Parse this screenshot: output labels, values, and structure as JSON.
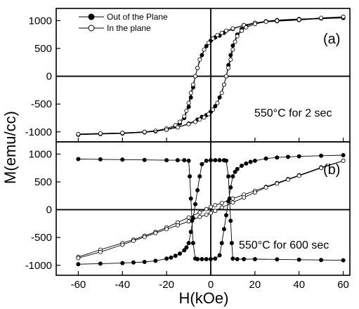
{
  "figure": {
    "ylabel": "M(emu/cc)",
    "xlabel": "H(kOe)"
  },
  "chart_data": [
    {
      "type": "line",
      "panel_label": "(a)",
      "annotation": "550°C for 2 sec",
      "xlim": [
        -70,
        63
      ],
      "ylim": [
        -1180,
        1220
      ],
      "yticks": [
        -1000,
        -500,
        0,
        500,
        1000
      ],
      "xticks": [
        -60,
        -40,
        -20,
        0,
        20,
        40,
        60
      ],
      "legend": {
        "placement": "top-left",
        "entries": [
          "Out of the Plane",
          "In the plane"
        ]
      },
      "series": [
        {
          "name": "Out of the Plane",
          "marker": "filled-circle",
          "branches": [
            {
              "x": [
                60,
                40,
                30,
                20,
                15,
                10,
                6,
                4,
                2,
                0,
                -2,
                -4,
                -6,
                -7,
                -8,
                -9,
                -10,
                -12,
                -14,
                -16,
                -20,
                -25,
                -30,
                -40,
                -50,
                -60
              ],
              "y": [
                1050,
                1020,
                1000,
                960,
                920,
                850,
                780,
                730,
                700,
                640,
                540,
                380,
                150,
                0,
                -200,
                -380,
                -550,
                -750,
                -850,
                -900,
                -960,
                -990,
                -1010,
                -1030,
                -1040,
                -1050
              ]
            },
            {
              "x": [
                -60,
                -40,
                -30,
                -20,
                -15,
                -10,
                -6,
                -4,
                -2,
                0,
                2,
                4,
                6,
                7,
                8,
                9,
                10,
                12,
                14,
                16,
                20,
                25,
                30,
                40,
                50,
                60
              ],
              "y": [
                -1050,
                -1020,
                -1000,
                -960,
                -920,
                -850,
                -780,
                -730,
                -700,
                -640,
                -540,
                -380,
                -150,
                0,
                200,
                380,
                550,
                750,
                850,
                900,
                960,
                990,
                1010,
                1030,
                1040,
                1050
              ]
            }
          ]
        },
        {
          "name": "In the plane",
          "marker": "open-circle",
          "branches": [
            {
              "x": [
                60,
                50,
                40,
                30,
                20,
                15,
                10,
                7,
                5,
                3,
                1,
                -1,
                -3,
                -5,
                -6,
                -7,
                -8,
                -9,
                -10,
                -11,
                -12,
                -14,
                -16,
                -20,
                -25,
                -30,
                -40,
                -50,
                -60
              ],
              "y": [
                1070,
                1040,
                1010,
                990,
                960,
                920,
                860,
                820,
                780,
                740,
                680,
                600,
                480,
                300,
                150,
                0,
                -150,
                -300,
                -480,
                -620,
                -720,
                -820,
                -880,
                -940,
                -980,
                -1000,
                -1020,
                -1030,
                -1040
              ]
            },
            {
              "x": [
                -60,
                -50,
                -40,
                -30,
                -20,
                -15,
                -10,
                -7,
                -5,
                -3,
                -1,
                1,
                3,
                5,
                6,
                7,
                8,
                9,
                10,
                11,
                12,
                14,
                16,
                20,
                25,
                30,
                40,
                50,
                60
              ],
              "y": [
                -1040,
                -1030,
                -1020,
                -1000,
                -960,
                -920,
                -860,
                -820,
                -780,
                -740,
                -680,
                -600,
                -480,
                -300,
                -150,
                0,
                150,
                300,
                480,
                620,
                720,
                820,
                880,
                940,
                980,
                1000,
                1020,
                1050,
                1070
              ]
            }
          ]
        }
      ]
    },
    {
      "type": "line",
      "panel_label": "(b)",
      "annotation": "550°C for 600 sec",
      "xlim": [
        -70,
        63
      ],
      "ylim": [
        -1180,
        1220
      ],
      "yticks": [
        -1000,
        -500,
        0,
        500,
        1000
      ],
      "xticks": [
        -60,
        -40,
        -20,
        0,
        20,
        40,
        60
      ],
      "series": [
        {
          "name": "Out of the Plane",
          "marker": "filled-circle",
          "branches": [
            {
              "x": [
                60,
                50,
                40,
                35,
                30,
                25,
                20,
                18,
                16,
                14,
                12,
                11,
                10,
                9,
                8,
                7,
                6,
                5,
                4,
                2,
                0,
                -2,
                -4,
                -6,
                -7,
                -8,
                -8.5,
                -9,
                -9.5,
                -10,
                -12,
                -15,
                -20,
                -30,
                -40,
                -50,
                -60
              ],
              "y": [
                980,
                970,
                960,
                950,
                940,
                920,
                880,
                860,
                830,
                790,
                730,
                680,
                600,
                400,
                150,
                -100,
                -350,
                -600,
                -820,
                -880,
                -890,
                -890,
                -890,
                -890,
                -880,
                -600,
                -200,
                200,
                600,
                880,
                890,
                890,
                890,
                895,
                900,
                905,
                910
              ]
            },
            {
              "x": [
                -60,
                -50,
                -40,
                -35,
                -30,
                -25,
                -20,
                -18,
                -16,
                -14,
                -12,
                -11,
                -10,
                -9,
                -8,
                -7,
                -6,
                -5,
                -4,
                -2,
                0,
                2,
                4,
                6,
                7,
                8,
                8.5,
                9,
                9.5,
                10,
                12,
                15,
                20,
                30,
                40,
                50,
                60
              ],
              "y": [
                -980,
                -970,
                -960,
                -950,
                -940,
                -920,
                -880,
                -860,
                -830,
                -790,
                -730,
                -680,
                -600,
                -400,
                -150,
                100,
                350,
                600,
                820,
                880,
                890,
                890,
                890,
                890,
                880,
                600,
                200,
                -200,
                -600,
                -880,
                -890,
                -890,
                -890,
                -895,
                -900,
                -905,
                -910
              ]
            }
          ]
        },
        {
          "name": "In the plane",
          "marker": "open-circle",
          "branches": [
            {
              "x": [
                -60,
                -50,
                -40,
                -35,
                -30,
                -25,
                -20,
                -15,
                -10,
                -5,
                -2,
                0,
                2,
                5,
                10,
                15,
                20,
                25,
                30,
                35,
                40,
                50,
                60
              ],
              "y": [
                -850,
                -720,
                -600,
                -540,
                -470,
                -400,
                -320,
                -230,
                -140,
                -50,
                10,
                50,
                80,
                120,
                200,
                270,
                340,
                410,
                480,
                550,
                620,
                760,
                880
              ]
            },
            {
              "x": [
                60,
                50,
                40,
                35,
                30,
                25,
                20,
                15,
                10,
                5,
                2,
                0,
                -2,
                -5,
                -10,
                -15,
                -20,
                -25,
                -30,
                -35,
                -40,
                -50,
                -60
              ],
              "y": [
                880,
                750,
                610,
                540,
                470,
                400,
                310,
                220,
                130,
                40,
                -20,
                -60,
                -90,
                -130,
                -210,
                -280,
                -350,
                -420,
                -490,
                -560,
                -630,
                -760,
                -870
              ]
            }
          ]
        }
      ]
    }
  ]
}
